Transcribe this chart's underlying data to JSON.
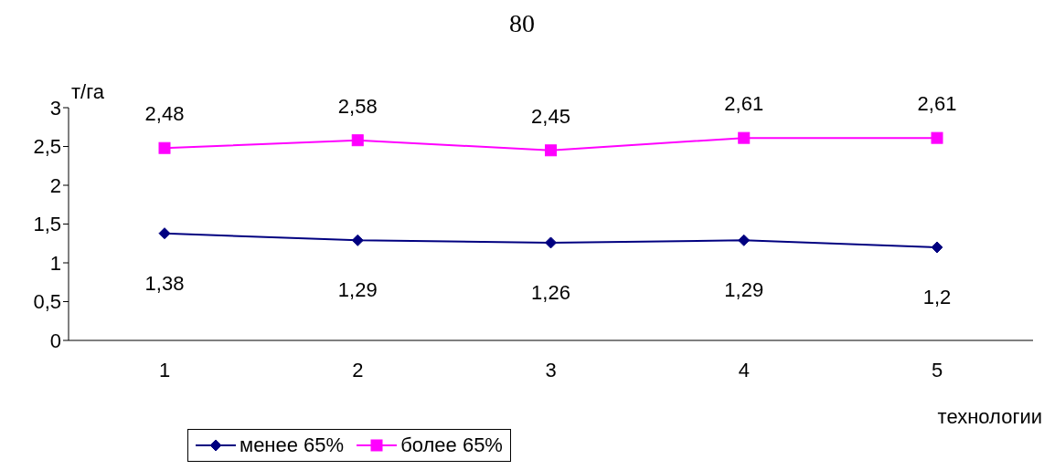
{
  "chart_data": {
    "type": "line",
    "annotations": [
      "80"
    ],
    "ylabel": "т/га",
    "xlabel": "технологии",
    "categories": [
      "1",
      "2",
      "3",
      "4",
      "5"
    ],
    "series": [
      {
        "name": "менее 65%",
        "color": "#000080",
        "marker": "diamond",
        "values": [
          1.38,
          1.29,
          1.26,
          1.29,
          1.2
        ],
        "value_labels": [
          "1,38",
          "1,29",
          "1,26",
          "1,29",
          "1,2"
        ]
      },
      {
        "name": "более 65%",
        "color": "#ff00ff",
        "marker": "square",
        "values": [
          2.48,
          2.58,
          2.45,
          2.61,
          2.61
        ],
        "value_labels": [
          "2,48",
          "2,58",
          "2,45",
          "2,61",
          "2,61"
        ]
      }
    ],
    "ylim": [
      0,
      3
    ],
    "yticks": [
      0,
      {
        "value": 0.5,
        "label": "0,5"
      },
      1,
      {
        "value": 1.5,
        "label": "1,5"
      },
      2,
      {
        "value": 2.5,
        "label": "2,5"
      },
      3
    ],
    "grid": false,
    "legend": "bottom left"
  }
}
